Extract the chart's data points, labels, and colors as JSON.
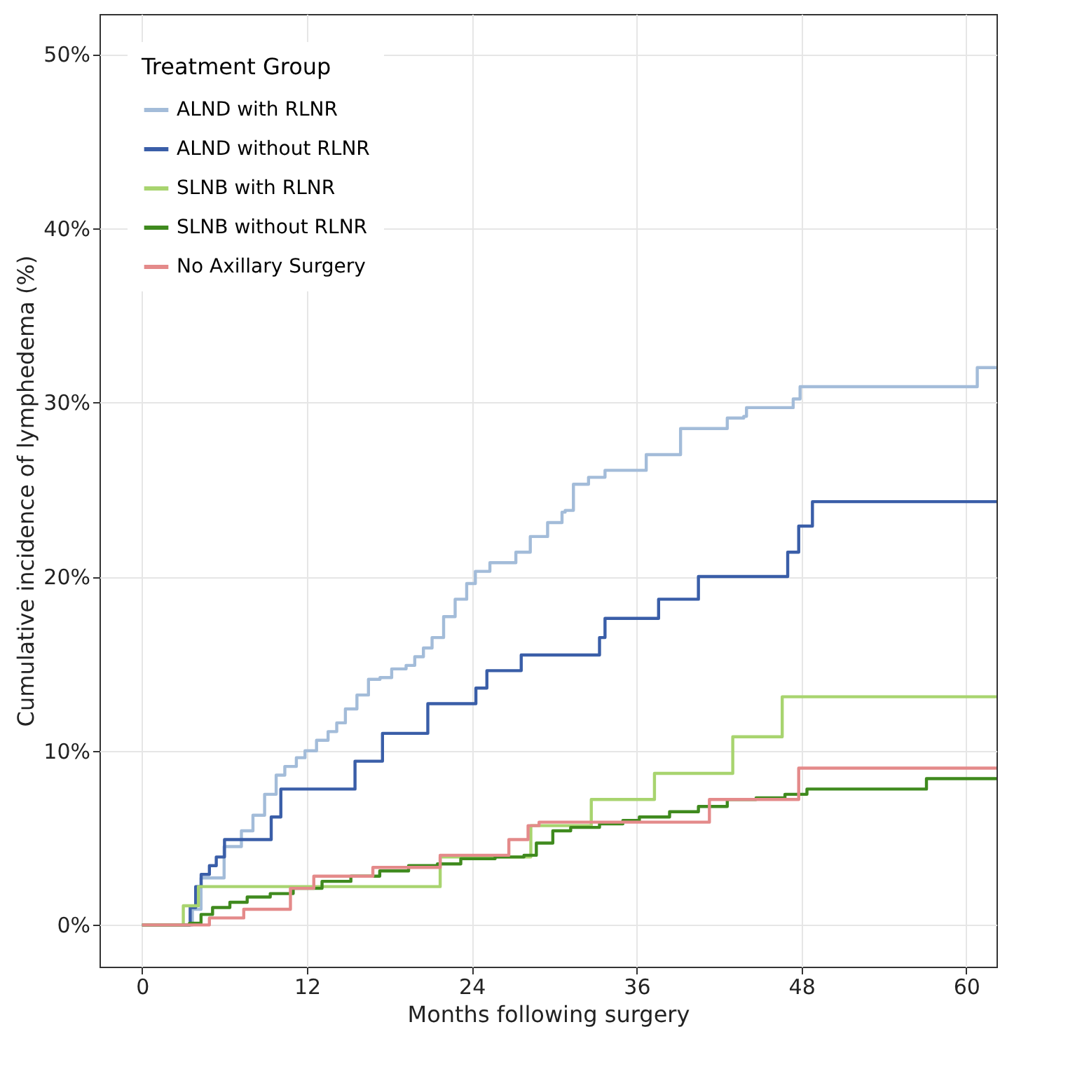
{
  "chart_data": {
    "type": "step",
    "xlabel": "Months following surgery",
    "ylabel": "Cumulative incidence of lymphedema (%)",
    "legend_title": "Treatment Group",
    "legend": "top left",
    "grid": true,
    "xlim": [
      -3.1,
      62.2
    ],
    "xticks": [
      0,
      12,
      24,
      36,
      48,
      60
    ],
    "ylim": [
      -2.4,
      52.3
    ],
    "yticks": [
      {
        "value": 0,
        "label": "0%"
      },
      {
        "value": 10,
        "label": "10%"
      },
      {
        "value": 20,
        "label": "20%"
      },
      {
        "value": 30,
        "label": "30%"
      },
      {
        "value": 40,
        "label": "40%"
      },
      {
        "value": 50,
        "label": "50%"
      }
    ],
    "series": [
      {
        "name": "ALND with RLNR",
        "color": "#a3bcd9",
        "x": [
          0,
          3.66,
          4.29,
          5.97,
          7.23,
          8.07,
          8.92,
          9.76,
          10.39,
          11.23,
          11.86,
          12.7,
          13.54,
          14.17,
          14.8,
          15.64,
          16.48,
          17.32,
          18.17,
          19.22,
          19.85,
          20.48,
          21.11,
          21.95,
          22.79,
          23.63,
          24.26,
          25.32,
          27.21,
          28.26,
          29.52,
          30.57,
          30.8,
          31.4,
          32.5,
          33.7,
          36.7,
          39.2,
          42.6,
          43.8,
          44,
          47.4,
          47.9,
          60.8,
          62.2
        ],
        "values": [
          0,
          0.9,
          2.7,
          4.5,
          5.4,
          6.3,
          7.5,
          8.6,
          9.1,
          9.6,
          10,
          10.6,
          11.1,
          11.6,
          12.4,
          13.2,
          14.1,
          14.2,
          14.7,
          14.9,
          15.4,
          15.9,
          16.5,
          17.7,
          18.7,
          19.6,
          20.3,
          20.8,
          21.4,
          22.3,
          23.1,
          23.7,
          23.8,
          25.3,
          25.7,
          26.1,
          27,
          28.5,
          29.1,
          29.2,
          29.7,
          30.2,
          30.9,
          32,
          32
        ]
      },
      {
        "name": "ALND without RLNR",
        "color": "#3a5ea8",
        "x": [
          0,
          3.5,
          3.9,
          4.3,
          4.9,
          5.4,
          6,
          9.4,
          10.1,
          15.5,
          17.5,
          20.8,
          24.3,
          25.1,
          27.6,
          33.3,
          33.7,
          37.6,
          40.5,
          47,
          47.8,
          48.8,
          62.2
        ],
        "values": [
          0,
          1,
          2.2,
          2.9,
          3.4,
          3.9,
          4.9,
          6.2,
          7.8,
          9.4,
          11,
          12.7,
          13.6,
          14.6,
          15.5,
          16.5,
          17.6,
          18.7,
          20,
          21.4,
          22.9,
          24.3,
          24.3
        ]
      },
      {
        "name": "SLNB with RLNR",
        "color": "#a8d46f",
        "x": [
          0,
          3,
          4.1,
          21.7,
          28.3,
          32.7,
          37.3,
          43,
          46.6,
          62.2
        ],
        "values": [
          0,
          1.1,
          2.2,
          3.9,
          5.7,
          7.2,
          8.7,
          10.8,
          13.1,
          13.1
        ]
      },
      {
        "name": "SLNB without RLNR",
        "color": "#3f8a1e",
        "x": [
          0,
          3.45,
          4.29,
          5.13,
          6.39,
          7.65,
          9.33,
          11,
          13.1,
          15.2,
          17.3,
          19.4,
          21.5,
          23.2,
          25.7,
          27.8,
          28.7,
          29.9,
          31.2,
          33.3,
          35,
          36.2,
          38.4,
          40.5,
          42.6,
          44.7,
          46.8,
          48.4,
          57.1,
          62.2
        ],
        "values": [
          0,
          0.1,
          0.6,
          1,
          1.3,
          1.6,
          1.8,
          2.1,
          2.5,
          2.8,
          3.1,
          3.4,
          3.5,
          3.8,
          3.9,
          4,
          4.7,
          5.4,
          5.6,
          5.8,
          6,
          6.2,
          6.5,
          6.8,
          7.2,
          7.3,
          7.5,
          7.8,
          8.4,
          8.4
        ]
      },
      {
        "name": "No Axillary Surgery",
        "color": "#e48a8a",
        "x": [
          0,
          4.9,
          7.4,
          10.8,
          12.5,
          16.8,
          21.7,
          26.7,
          28.1,
          28.9,
          41.3,
          47.8,
          62.2
        ],
        "values": [
          0,
          0.4,
          0.9,
          2.1,
          2.8,
          3.3,
          4,
          4.9,
          5.7,
          5.9,
          7.2,
          9,
          9
        ]
      }
    ]
  }
}
